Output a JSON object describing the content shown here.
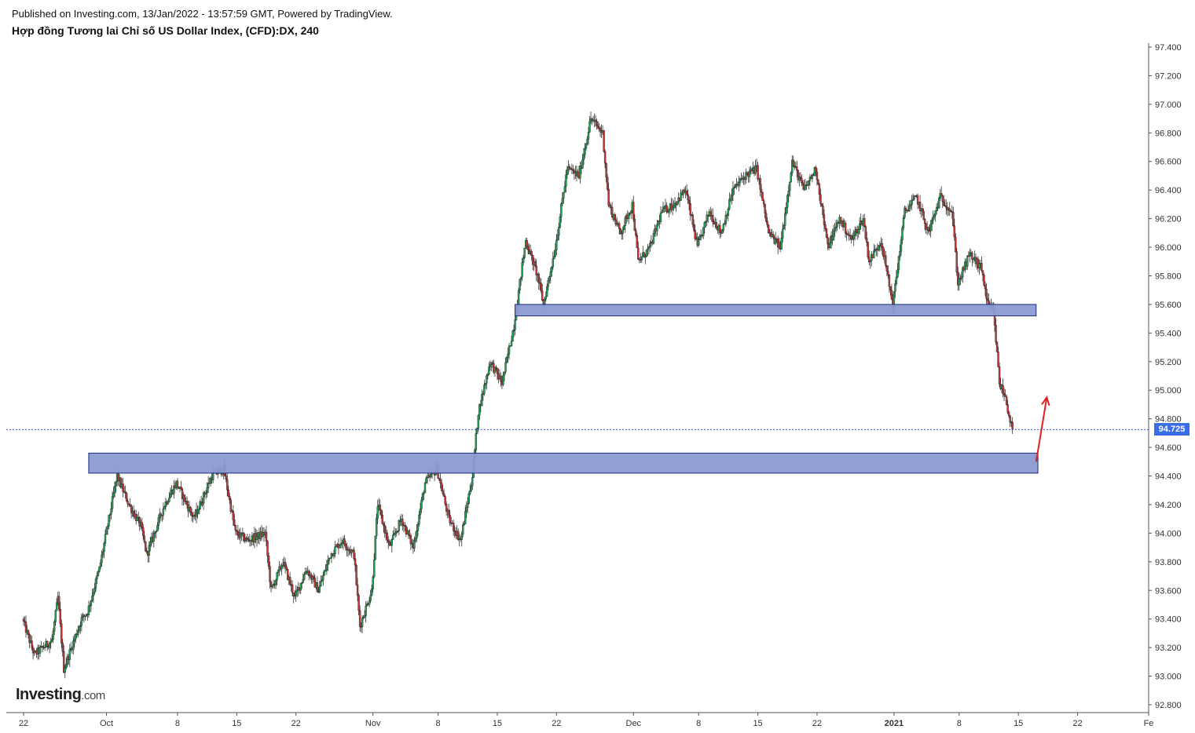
{
  "header": {
    "published": "Published on Investing.com, 13/Jan/2022 - 13:57:59 GMT, Powered by TradingView.",
    "title": "Hợp đồng Tương lai Chỉ số US Dollar Index, (CFD):DX, 240"
  },
  "logo": {
    "text": "Investing",
    "suffix": ".com"
  },
  "last_price": "94.725",
  "colors": {
    "up": "#26a35a",
    "down": "#c23a3a",
    "zone_fill": "#8a9ad2",
    "zone_stroke": "#1e2d7a",
    "badge": "#3a6ee8",
    "arrow": "#e02020",
    "last_price_line": "#2f5fd0"
  },
  "chart_data": {
    "type": "candlestick",
    "title": "",
    "x_axis": {
      "ticks": [
        {
          "label": "22",
          "index": 0
        },
        {
          "label": "Oct",
          "index": 14
        },
        {
          "label": "8",
          "index": 26
        },
        {
          "label": "15",
          "index": 36
        },
        {
          "label": "22",
          "index": 46
        },
        {
          "label": "Nov",
          "index": 59
        },
        {
          "label": "8",
          "index": 70
        },
        {
          "label": "15",
          "index": 80
        },
        {
          "label": "22",
          "index": 90
        },
        {
          "label": "Dec",
          "index": 103
        },
        {
          "label": "8",
          "index": 114
        },
        {
          "label": "15",
          "index": 124
        },
        {
          "label": "22",
          "index": 134
        },
        {
          "label": "2021",
          "index": 147,
          "bold": true
        },
        {
          "label": "8",
          "index": 158
        },
        {
          "label": "15",
          "index": 168
        },
        {
          "label": "22",
          "index": 178
        },
        {
          "label": "Fe",
          "index": 190
        }
      ],
      "index_max": 190
    },
    "y_axis": {
      "min": 92.75,
      "max": 97.44,
      "ticks": [
        "97.400",
        "97.200",
        "97.000",
        "96.800",
        "96.600",
        "96.400",
        "96.200",
        "96.000",
        "95.800",
        "95.600",
        "95.400",
        "95.200",
        "95.000",
        "94.800",
        "94.600",
        "94.400",
        "94.200",
        "94.000",
        "93.800",
        "93.600",
        "93.400",
        "93.200",
        "93.000",
        "92.800"
      ]
    },
    "key_points": [
      {
        "i": 0,
        "v": 93.4
      },
      {
        "i": 2,
        "v": 93.15
      },
      {
        "i": 5,
        "v": 93.25
      },
      {
        "i": 6,
        "v": 93.55
      },
      {
        "i": 7,
        "v": 93.05
      },
      {
        "i": 10,
        "v": 93.4
      },
      {
        "i": 11,
        "v": 93.45
      },
      {
        "i": 13,
        "v": 93.75
      },
      {
        "i": 16,
        "v": 94.4
      },
      {
        "i": 18,
        "v": 94.2
      },
      {
        "i": 20,
        "v": 94.05
      },
      {
        "i": 21,
        "v": 93.85
      },
      {
        "i": 24,
        "v": 94.2
      },
      {
        "i": 26,
        "v": 94.35
      },
      {
        "i": 29,
        "v": 94.1
      },
      {
        "i": 32,
        "v": 94.4
      },
      {
        "i": 34,
        "v": 94.45
      },
      {
        "i": 36,
        "v": 94.0
      },
      {
        "i": 38,
        "v": 93.95
      },
      {
        "i": 41,
        "v": 94.0
      },
      {
        "i": 42,
        "v": 93.6
      },
      {
        "i": 44,
        "v": 93.8
      },
      {
        "i": 46,
        "v": 93.55
      },
      {
        "i": 48,
        "v": 93.75
      },
      {
        "i": 50,
        "v": 93.6
      },
      {
        "i": 52,
        "v": 93.85
      },
      {
        "i": 54,
        "v": 93.95
      },
      {
        "i": 56,
        "v": 93.85
      },
      {
        "i": 57,
        "v": 93.35
      },
      {
        "i": 59,
        "v": 93.6
      },
      {
        "i": 60,
        "v": 94.2
      },
      {
        "i": 62,
        "v": 93.9
      },
      {
        "i": 64,
        "v": 94.1
      },
      {
        "i": 66,
        "v": 93.9
      },
      {
        "i": 68,
        "v": 94.35
      },
      {
        "i": 70,
        "v": 94.45
      },
      {
        "i": 72,
        "v": 94.1
      },
      {
        "i": 74,
        "v": 93.95
      },
      {
        "i": 76,
        "v": 94.4
      },
      {
        "i": 77,
        "v": 94.85
      },
      {
        "i": 79,
        "v": 95.2
      },
      {
        "i": 81,
        "v": 95.05
      },
      {
        "i": 83,
        "v": 95.45
      },
      {
        "i": 85,
        "v": 96.05
      },
      {
        "i": 87,
        "v": 95.8
      },
      {
        "i": 88,
        "v": 95.6
      },
      {
        "i": 90,
        "v": 96.0
      },
      {
        "i": 92,
        "v": 96.55
      },
      {
        "i": 94,
        "v": 96.5
      },
      {
        "i": 96,
        "v": 96.9
      },
      {
        "i": 98,
        "v": 96.8
      },
      {
        "i": 99,
        "v": 96.3
      },
      {
        "i": 101,
        "v": 96.1
      },
      {
        "i": 103,
        "v": 96.3
      },
      {
        "i": 104,
        "v": 95.9
      },
      {
        "i": 106,
        "v": 96.0
      },
      {
        "i": 108,
        "v": 96.25
      },
      {
        "i": 110,
        "v": 96.3
      },
      {
        "i": 112,
        "v": 96.4
      },
      {
        "i": 114,
        "v": 96.0
      },
      {
        "i": 116,
        "v": 96.25
      },
      {
        "i": 118,
        "v": 96.1
      },
      {
        "i": 120,
        "v": 96.4
      },
      {
        "i": 122,
        "v": 96.5
      },
      {
        "i": 124,
        "v": 96.55
      },
      {
        "i": 126,
        "v": 96.1
      },
      {
        "i": 128,
        "v": 96.0
      },
      {
        "i": 130,
        "v": 96.6
      },
      {
        "i": 132,
        "v": 96.4
      },
      {
        "i": 134,
        "v": 96.55
      },
      {
        "i": 136,
        "v": 96.0
      },
      {
        "i": 138,
        "v": 96.2
      },
      {
        "i": 140,
        "v": 96.05
      },
      {
        "i": 142,
        "v": 96.2
      },
      {
        "i": 143,
        "v": 95.9
      },
      {
        "i": 145,
        "v": 96.05
      },
      {
        "i": 147,
        "v": 95.6
      },
      {
        "i": 149,
        "v": 96.25
      },
      {
        "i": 151,
        "v": 96.35
      },
      {
        "i": 153,
        "v": 96.1
      },
      {
        "i": 155,
        "v": 96.35
      },
      {
        "i": 157,
        "v": 96.25
      },
      {
        "i": 158,
        "v": 95.75
      },
      {
        "i": 160,
        "v": 95.95
      },
      {
        "i": 162,
        "v": 95.85
      },
      {
        "i": 163,
        "v": 95.6
      },
      {
        "i": 164,
        "v": 95.55
      },
      {
        "i": 165,
        "v": 95.05
      },
      {
        "i": 166,
        "v": 94.95
      },
      {
        "i": 167,
        "v": 94.75
      }
    ],
    "zones": [
      {
        "name": "resistance",
        "from_index": 83,
        "to_index": 171,
        "low": 95.52,
        "high": 95.6
      },
      {
        "name": "support",
        "from_index": 11,
        "to_index": 171.3,
        "low": 94.42,
        "high": 94.56
      }
    ],
    "last_price_value": 94.725,
    "arrow": {
      "from_index": 171,
      "from_value": 94.5,
      "to_index": 172.8,
      "to_value": 94.95
    }
  }
}
